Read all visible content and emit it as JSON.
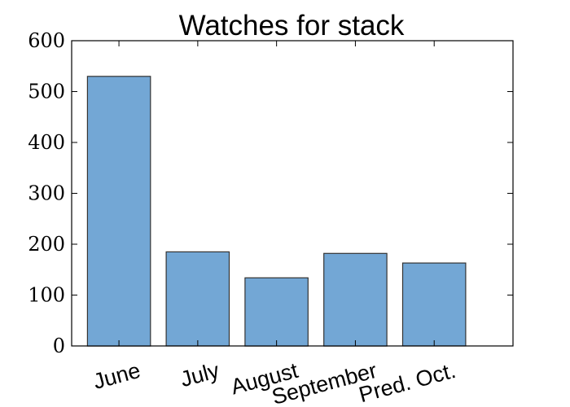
{
  "chart_data": {
    "type": "bar",
    "title": "Watches for stack",
    "xlabel": "",
    "ylabel": "",
    "categories": [
      "June",
      "July",
      "August",
      "September",
      "Pred. Oct."
    ],
    "values": [
      530,
      185,
      134,
      182,
      163
    ],
    "ylim": [
      0,
      600
    ],
    "yticks": [
      0,
      100,
      200,
      300,
      400,
      500,
      600
    ],
    "grid": false,
    "bar_color": "#73a7d5",
    "bar_edge_color": "#333333"
  }
}
